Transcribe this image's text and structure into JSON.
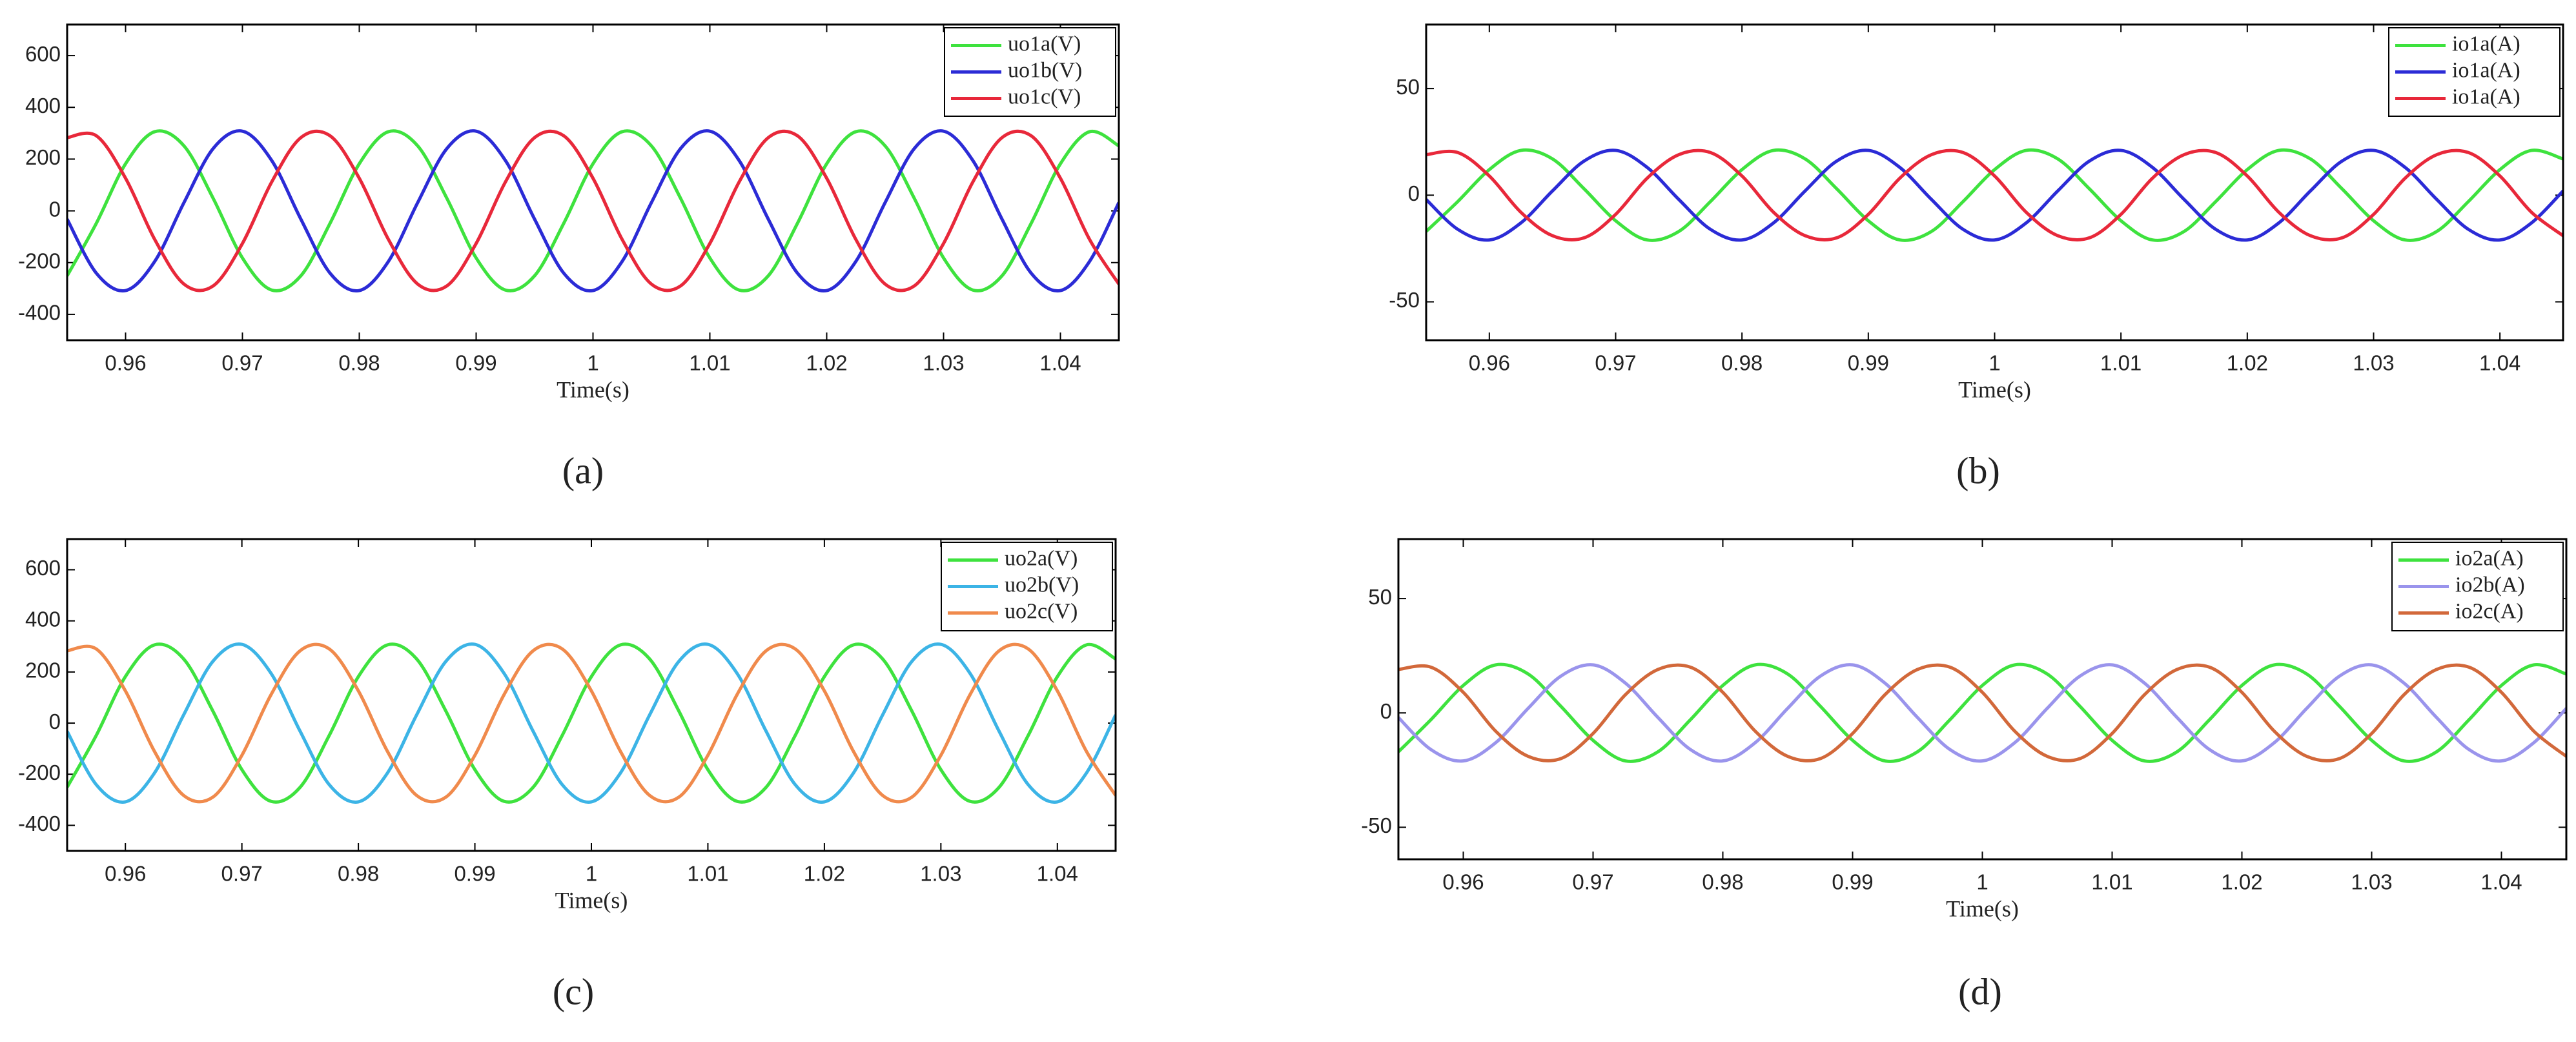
{
  "chart_data": [
    {
      "type": "line",
      "caption": "(a)",
      "xlabel": "Time(s)",
      "legend": "upper right",
      "x": [
        0.955,
        0.9575,
        0.96,
        0.9625,
        0.965,
        0.9675,
        0.97,
        0.9725,
        0.975,
        0.9775,
        0.98,
        0.9825,
        0.985,
        0.9875,
        0.99,
        0.9925,
        0.995,
        0.9975,
        1,
        1.0025,
        1.005,
        1.0075,
        1.01,
        1.0125,
        1.015,
        1.0175,
        1.02,
        1.0225,
        1.025,
        1.0275,
        1.03,
        1.0325,
        1.035,
        1.0375,
        1.04,
        1.0425,
        1.045
      ],
      "xlim": [
        0.955,
        1.045
      ],
      "xticks": [
        0.96,
        0.97,
        0.98,
        0.99,
        1,
        1.01,
        1.02,
        1.03,
        1.04
      ],
      "ylim": [
        -500,
        720
      ],
      "yticks": [
        -400,
        -200,
        0,
        200,
        400,
        600
      ],
      "series": [
        {
          "name": "uo1a(V)",
          "color": "#3ee23e",
          "values": [
            -251,
            -48,
            182,
            306,
            251,
            48,
            -182,
            -306,
            -251,
            -48,
            182,
            306,
            251,
            48,
            -182,
            -306,
            -251,
            -48,
            182,
            306,
            251,
            48,
            -182,
            -306,
            -251,
            -48,
            182,
            306,
            251,
            48,
            -182,
            -306,
            -251,
            -48,
            182,
            306,
            251
          ]
        },
        {
          "name": "uo1b(V)",
          "color": "#2b2bd6",
          "values": [
            -32,
            -241,
            -308,
            -195,
            32,
            241,
            308,
            195,
            -32,
            -241,
            -308,
            -195,
            32,
            241,
            308,
            195,
            -32,
            -241,
            -308,
            -195,
            32,
            241,
            308,
            195,
            -32,
            -241,
            -308,
            -195,
            32,
            241,
            308,
            195,
            -32,
            -241,
            -308,
            -195,
            32
          ]
        },
        {
          "name": "uo1c(V)",
          "color": "#e8283a",
          "values": [
            283,
            290,
            126,
            -111,
            -283,
            -290,
            -126,
            111,
            283,
            290,
            126,
            -111,
            -283,
            -290,
            -126,
            111,
            283,
            290,
            126,
            -111,
            -283,
            -290,
            -126,
            111,
            283,
            290,
            126,
            -111,
            -283,
            -290,
            -126,
            111,
            283,
            290,
            126,
            -111,
            -283
          ]
        }
      ]
    },
    {
      "type": "line",
      "caption": "(b)",
      "xlabel": "Time(s)",
      "legend": "upper right",
      "x": [
        0.955,
        0.9575,
        0.96,
        0.9625,
        0.965,
        0.9675,
        0.97,
        0.9725,
        0.975,
        0.9775,
        0.98,
        0.9825,
        0.985,
        0.9875,
        0.99,
        0.9925,
        0.995,
        0.9975,
        1,
        1.0025,
        1.005,
        1.0075,
        1.01,
        1.0125,
        1.015,
        1.0175,
        1.02,
        1.0225,
        1.025,
        1.0275,
        1.03,
        1.0325,
        1.035,
        1.0375,
        1.04,
        1.0425,
        1.045
      ],
      "xlim": [
        0.955,
        1.045
      ],
      "xticks": [
        0.96,
        0.97,
        0.98,
        0.99,
        1,
        1.01,
        1.02,
        1.03,
        1.04
      ],
      "ylim": [
        -68,
        80
      ],
      "yticks": [
        -50,
        0,
        50
      ],
      "series": [
        {
          "name": "io1a(A)",
          "color": "#3ee23e",
          "values": [
            -17,
            -3,
            12,
            21,
            17,
            3,
            -12,
            -21,
            -17,
            -3,
            12,
            21,
            17,
            3,
            -12,
            -21,
            -17,
            -3,
            12,
            21,
            17,
            3,
            -12,
            -21,
            -17,
            -3,
            12,
            21,
            17,
            3,
            -12,
            -21,
            -17,
            -3,
            12,
            21,
            17
          ]
        },
        {
          "name": "io1a(A)",
          "color": "#2b2bd6",
          "values": [
            -2,
            -16,
            -21,
            -13,
            2,
            16,
            21,
            13,
            -2,
            -16,
            -21,
            -13,
            2,
            16,
            21,
            13,
            -2,
            -16,
            -21,
            -13,
            2,
            16,
            21,
            13,
            -2,
            -16,
            -21,
            -13,
            2,
            16,
            21,
            13,
            -2,
            -16,
            -21,
            -13,
            2
          ]
        },
        {
          "name": "io1a(A)",
          "color": "#e8283a",
          "values": [
            19,
            20,
            9,
            -8,
            -19,
            -20,
            -9,
            8,
            19,
            20,
            9,
            -8,
            -19,
            -20,
            -9,
            8,
            19,
            20,
            9,
            -8,
            -19,
            -20,
            -9,
            8,
            19,
            20,
            9,
            -8,
            -19,
            -20,
            -9,
            8,
            19,
            20,
            9,
            -8,
            -19
          ]
        }
      ]
    },
    {
      "type": "line",
      "caption": "(c)",
      "xlabel": "Time(s)",
      "legend": "upper right",
      "x": [
        0.955,
        0.9575,
        0.96,
        0.9625,
        0.965,
        0.9675,
        0.97,
        0.9725,
        0.975,
        0.9775,
        0.98,
        0.9825,
        0.985,
        0.9875,
        0.99,
        0.9925,
        0.995,
        0.9975,
        1,
        1.0025,
        1.005,
        1.0075,
        1.01,
        1.0125,
        1.015,
        1.0175,
        1.02,
        1.0225,
        1.025,
        1.0275,
        1.03,
        1.0325,
        1.035,
        1.0375,
        1.04,
        1.0425,
        1.045
      ],
      "xlim": [
        0.955,
        1.045
      ],
      "xticks": [
        0.96,
        0.97,
        0.98,
        0.99,
        1,
        1.01,
        1.02,
        1.03,
        1.04
      ],
      "ylim": [
        -500,
        720
      ],
      "yticks": [
        -400,
        -200,
        0,
        200,
        400,
        600
      ],
      "series": [
        {
          "name": "uo2a(V)",
          "color": "#3ee23e",
          "values": [
            -251,
            -48,
            182,
            306,
            251,
            48,
            -182,
            -306,
            -251,
            -48,
            182,
            306,
            251,
            48,
            -182,
            -306,
            -251,
            -48,
            182,
            306,
            251,
            48,
            -182,
            -306,
            -251,
            -48,
            182,
            306,
            251,
            48,
            -182,
            -306,
            -251,
            -48,
            182,
            306,
            251
          ]
        },
        {
          "name": "uo2b(V)",
          "color": "#3cb4e6",
          "values": [
            -32,
            -241,
            -308,
            -195,
            32,
            241,
            308,
            195,
            -32,
            -241,
            -308,
            -195,
            32,
            241,
            308,
            195,
            -32,
            -241,
            -308,
            -195,
            32,
            241,
            308,
            195,
            -32,
            -241,
            -308,
            -195,
            32,
            241,
            308,
            195,
            -32,
            -241,
            -308,
            -195,
            32
          ]
        },
        {
          "name": "uo2c(V)",
          "color": "#f08a4c",
          "values": [
            283,
            290,
            126,
            -111,
            -283,
            -290,
            -126,
            111,
            283,
            290,
            126,
            -111,
            -283,
            -290,
            -126,
            111,
            283,
            290,
            126,
            -111,
            -283,
            -290,
            -126,
            111,
            283,
            290,
            126,
            -111,
            -283,
            -290,
            -126,
            111,
            283,
            290,
            126,
            -111,
            -283
          ]
        }
      ]
    },
    {
      "type": "line",
      "caption": "(d)",
      "xlabel": "Time(s)",
      "legend": "upper right",
      "x": [
        0.955,
        0.9575,
        0.96,
        0.9625,
        0.965,
        0.9675,
        0.97,
        0.9725,
        0.975,
        0.9775,
        0.98,
        0.9825,
        0.985,
        0.9875,
        0.99,
        0.9925,
        0.995,
        0.9975,
        1,
        1.0025,
        1.005,
        1.0075,
        1.01,
        1.0125,
        1.015,
        1.0175,
        1.02,
        1.0225,
        1.025,
        1.0275,
        1.03,
        1.0325,
        1.035,
        1.0375,
        1.04,
        1.0425,
        1.045
      ],
      "xlim": [
        0.955,
        1.045
      ],
      "xticks": [
        0.96,
        0.97,
        0.98,
        0.99,
        1,
        1.01,
        1.02,
        1.03,
        1.04
      ],
      "ylim": [
        -64,
        76
      ],
      "yticks": [
        -50,
        0,
        50
      ],
      "series": [
        {
          "name": "io2a(A)",
          "color": "#3ee23e",
          "values": [
            -17,
            -3,
            12,
            21,
            17,
            3,
            -12,
            -21,
            -17,
            -3,
            12,
            21,
            17,
            3,
            -12,
            -21,
            -17,
            -3,
            12,
            21,
            17,
            3,
            -12,
            -21,
            -17,
            -3,
            12,
            21,
            17,
            3,
            -12,
            -21,
            -17,
            -3,
            12,
            21,
            17
          ]
        },
        {
          "name": "io2b(A)",
          "color": "#9a94ec",
          "values": [
            -2,
            -16,
            -21,
            -13,
            2,
            16,
            21,
            13,
            -2,
            -16,
            -21,
            -13,
            2,
            16,
            21,
            13,
            -2,
            -16,
            -21,
            -13,
            2,
            16,
            21,
            13,
            -2,
            -16,
            -21,
            -13,
            2,
            16,
            21,
            13,
            -2,
            -16,
            -21,
            -13,
            2
          ]
        },
        {
          "name": "io2c(A)",
          "color": "#d2683a",
          "values": [
            19,
            20,
            9,
            -8,
            -19,
            -20,
            -9,
            8,
            19,
            20,
            9,
            -8,
            -19,
            -20,
            -9,
            8,
            19,
            20,
            9,
            -8,
            -19,
            -20,
            -9,
            8,
            19,
            20,
            9,
            -8,
            -19,
            -20,
            -9,
            8,
            19,
            20,
            9,
            -8,
            -19
          ]
        }
      ]
    }
  ]
}
